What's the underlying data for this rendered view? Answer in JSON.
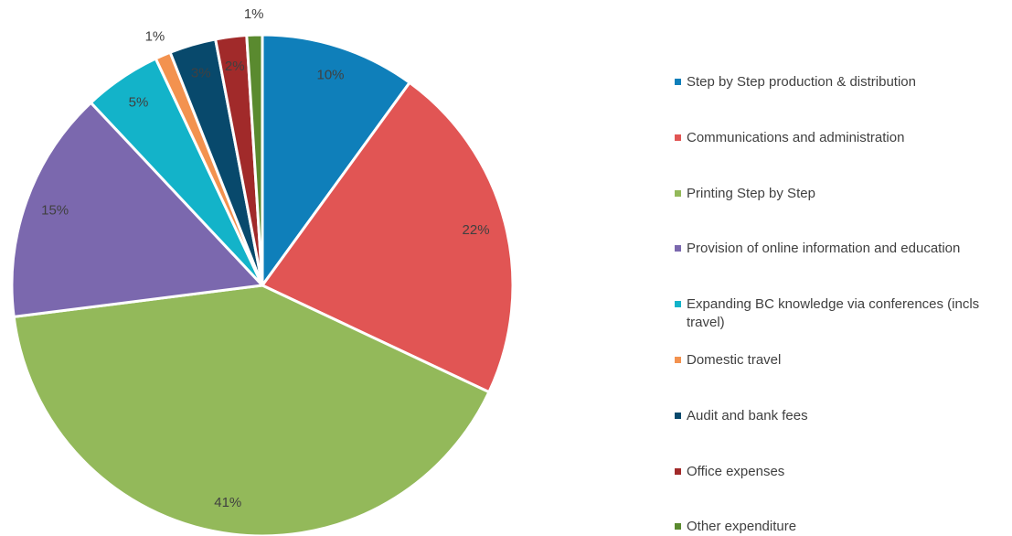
{
  "chart_data": {
    "type": "pie",
    "categories": [
      "Step by Step production & distribution",
      "Communications and administration",
      "Printing Step by Step",
      "Provision of online information and education",
      "Expanding BC knowledge via conferences (incls travel)",
      "Domestic travel",
      "Audit and bank fees",
      "Office expenses",
      "Other expenditure"
    ],
    "values": [
      10,
      22,
      41,
      15,
      5,
      1,
      3,
      2,
      1
    ],
    "value_labels": [
      "10%",
      "22%",
      "41%",
      "15%",
      "5%",
      "1%",
      "3%",
      "2%",
      "1%"
    ],
    "colors": [
      "#0f7fba",
      "#e15554",
      "#93b95a",
      "#7b68ae",
      "#13b3c9",
      "#f3924f",
      "#08496c",
      "#a12a2a",
      "#5a8a2f"
    ],
    "legend": "right"
  }
}
